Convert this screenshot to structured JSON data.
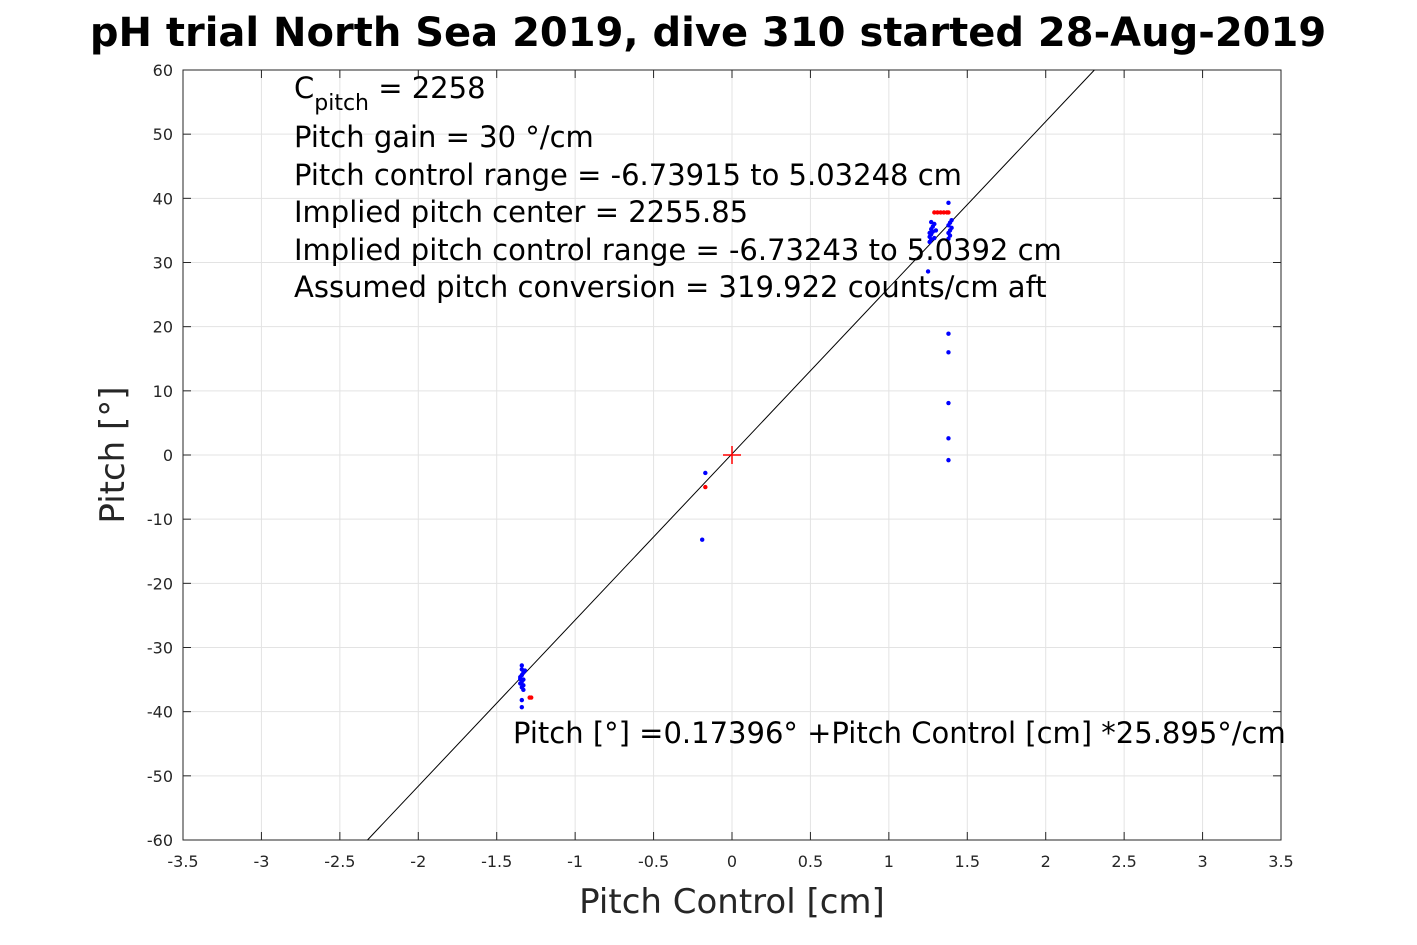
{
  "chart_data": {
    "type": "scatter",
    "title": "pH trial North Sea 2019, dive 310 started 28-Aug-2019",
    "xlabel": "Pitch Control [cm]",
    "ylabel": "Pitch [°]",
    "xlim": [
      -3.5,
      3.5
    ],
    "ylim": [
      -60,
      60
    ],
    "xticks": [
      -3.5,
      -3,
      -2.5,
      -2,
      -1.5,
      -1,
      -0.5,
      0,
      0.5,
      1,
      1.5,
      2,
      2.5,
      3,
      3.5
    ],
    "yticks": [
      -60,
      -50,
      -40,
      -30,
      -20,
      -10,
      0,
      10,
      20,
      30,
      40,
      50,
      60
    ],
    "xtick_labels": [
      "-3.5",
      "-3",
      "-2.5",
      "-2",
      "-1.5",
      "-1",
      "-0.5",
      "0",
      "0.5",
      "1",
      "1.5",
      "2",
      "2.5",
      "3",
      "3.5"
    ],
    "ytick_labels": [
      "-60",
      "-50",
      "-40",
      "-30",
      "-20",
      "-10",
      "0",
      "10",
      "20",
      "30",
      "40",
      "50",
      "60"
    ],
    "grid": true,
    "fit": {
      "intercept": 0.17396,
      "slope": 25.895,
      "color": "#000000"
    },
    "center_marker": {
      "x": 0,
      "y": 0,
      "color": "#ff0000"
    },
    "annotations": {
      "c_pitch_main": "C",
      "c_pitch_sub": "pitch",
      "c_pitch_rest": " = 2258",
      "pitch_gain": "Pitch gain = 30 °/cm",
      "pitch_control_range": "Pitch control range = -6.73915 to 5.03248 cm",
      "implied_center": "Implied pitch center = 2255.85",
      "implied_range": "Implied pitch control range = -6.73243 to 5.0392 cm",
      "assumed_conversion": "Assumed pitch conversion = 319.922 counts/cm aft",
      "fit_equation": "Pitch [°] =0.17396° +Pitch Control [cm] *25.895°/cm"
    },
    "series": [
      {
        "color": "#0000ff",
        "points": [
          [
            -1.34,
            -32.8
          ],
          [
            -1.34,
            -33.4
          ],
          [
            -1.33,
            -33.9
          ],
          [
            -1.34,
            -34.3
          ],
          [
            -1.35,
            -34.6
          ],
          [
            -1.33,
            -35.0
          ],
          [
            -1.34,
            -35.3
          ],
          [
            -1.35,
            -35.6
          ],
          [
            -1.33,
            -35.9
          ],
          [
            -1.34,
            -36.2
          ],
          [
            -1.32,
            -33.6
          ],
          [
            -1.35,
            -34.9
          ],
          [
            -1.33,
            -36.6
          ],
          [
            -1.34,
            -38.2
          ],
          [
            -1.34,
            -39.3
          ],
          [
            -0.17,
            -2.8
          ],
          [
            -0.19,
            -13.2
          ],
          [
            1.26,
            33.2
          ],
          [
            1.27,
            33.6
          ],
          [
            1.26,
            34.0
          ],
          [
            1.27,
            34.4
          ],
          [
            1.28,
            34.8
          ],
          [
            1.27,
            35.2
          ],
          [
            1.28,
            35.6
          ],
          [
            1.29,
            36.0
          ],
          [
            1.26,
            34.6
          ],
          [
            1.29,
            33.8
          ],
          [
            1.3,
            35.0
          ],
          [
            1.27,
            36.3
          ],
          [
            1.25,
            28.6
          ],
          [
            1.38,
            33.7
          ],
          [
            1.39,
            34.2
          ],
          [
            1.38,
            34.6
          ],
          [
            1.39,
            35.0
          ],
          [
            1.4,
            35.4
          ],
          [
            1.38,
            35.8
          ],
          [
            1.39,
            36.2
          ],
          [
            1.4,
            36.6
          ],
          [
            1.38,
            39.3
          ],
          [
            1.38,
            18.9
          ],
          [
            1.38,
            16.0
          ],
          [
            1.38,
            8.1
          ],
          [
            1.38,
            2.6
          ],
          [
            1.38,
            -0.8
          ]
        ]
      },
      {
        "color": "#ff0000",
        "points": [
          [
            1.29,
            37.8
          ],
          [
            1.31,
            37.8
          ],
          [
            1.33,
            37.8
          ],
          [
            1.35,
            37.8
          ],
          [
            1.37,
            37.8
          ],
          [
            1.38,
            37.8
          ],
          [
            -1.29,
            -37.8
          ],
          [
            -1.28,
            -37.8
          ],
          [
            -0.17,
            -5.0
          ]
        ]
      }
    ]
  }
}
